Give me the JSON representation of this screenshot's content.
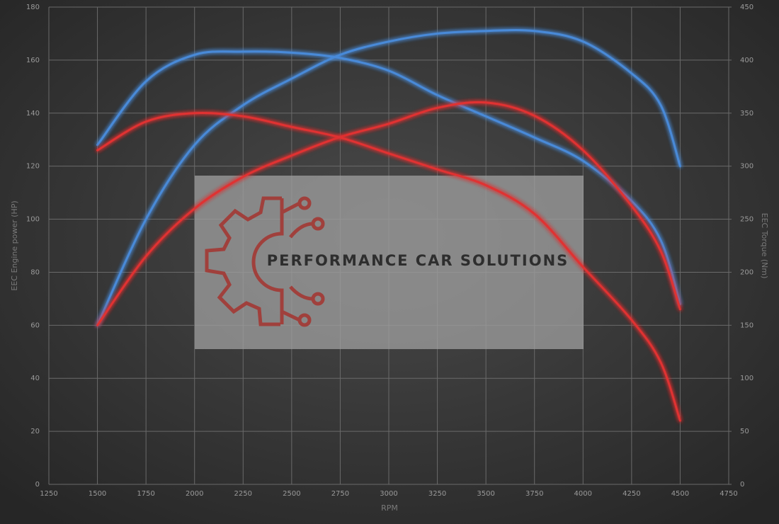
{
  "chart_data": {
    "type": "line",
    "x_label": "RPM",
    "y_label": "EEC Engine power (HP)",
    "y2_label": "EEC Torque (Nm)",
    "watermark": "PERFORMANCE CAR SOLUTIONS",
    "x": [
      1500,
      1750,
      2000,
      2250,
      2500,
      2750,
      3000,
      3250,
      3500,
      3750,
      4000,
      4250,
      4400,
      4500
    ],
    "xlim": [
      1250,
      4750
    ],
    "xticks": [
      1250,
      1500,
      1750,
      2000,
      2250,
      2500,
      2750,
      3000,
      3250,
      3500,
      3750,
      4000,
      4250,
      4500,
      4750
    ],
    "ylim": [
      0,
      180
    ],
    "yticks": [
      0,
      20,
      40,
      60,
      80,
      100,
      120,
      140,
      160,
      180
    ],
    "y2lim": [
      0,
      450
    ],
    "y2ticks": [
      0,
      50,
      100,
      150,
      200,
      250,
      300,
      350,
      400,
      450
    ],
    "grid": true,
    "series": [
      {
        "color": "#4a8ad8",
        "axis": "y",
        "values": [
          60,
          100,
          128,
          143,
          153,
          162,
          167,
          170,
          171,
          171,
          167,
          155,
          143,
          120
        ]
      },
      {
        "color": "#4a8ad8",
        "axis": "y2",
        "values": [
          320,
          380,
          405,
          408,
          407,
          402,
          390,
          367,
          347,
          327,
          305,
          267,
          230,
          170
        ]
      },
      {
        "color": "#e03030",
        "axis": "y",
        "values": [
          60,
          86,
          104,
          116,
          124,
          131,
          136,
          142,
          144,
          139,
          126,
          105,
          88,
          66
        ]
      },
      {
        "color": "#e03030",
        "axis": "y2",
        "values": [
          315,
          342,
          350,
          347,
          337,
          327,
          312,
          297,
          282,
          255,
          205,
          155,
          115,
          60
        ]
      }
    ]
  }
}
